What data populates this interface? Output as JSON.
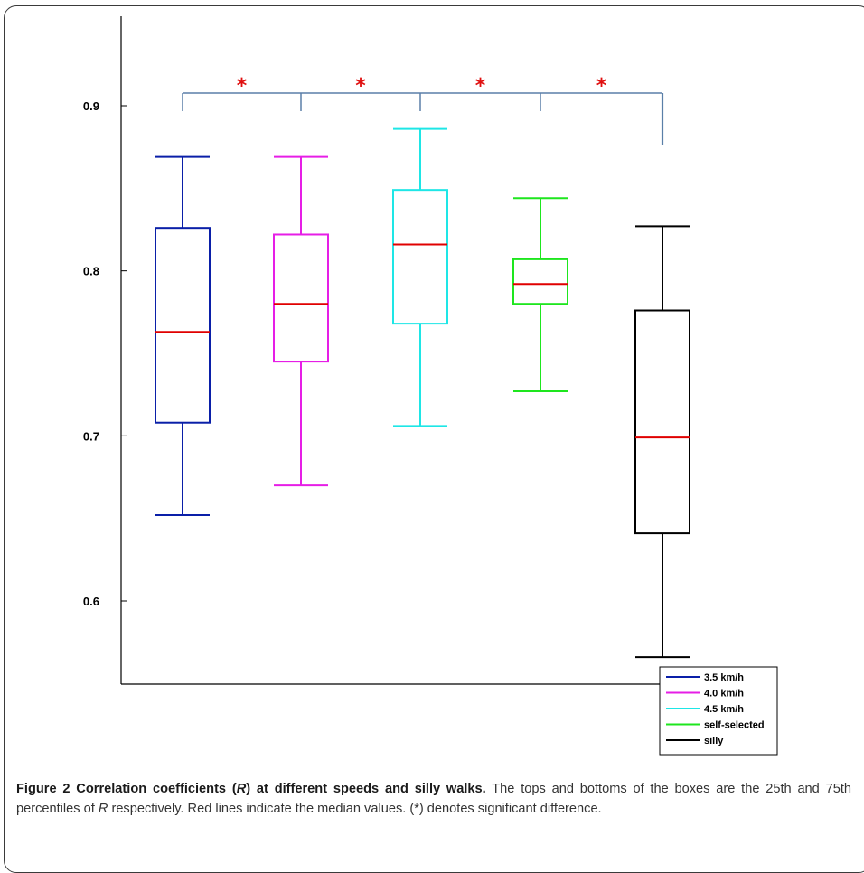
{
  "chart_data": {
    "type": "box",
    "ylim": [
      0.55,
      0.95
    ],
    "yticks": [
      0.6,
      0.7,
      0.8,
      0.9
    ],
    "ytick_labels": [
      "0.6",
      "0.7",
      "0.8",
      "0.9"
    ],
    "series": [
      {
        "name": "3.5 km/h",
        "color": "#0a1fa8",
        "whisker_low": 0.652,
        "q1": 0.708,
        "median": 0.763,
        "q3": 0.826,
        "whisker_high": 0.869
      },
      {
        "name": "4.0 km/h",
        "color": "#e61ee6",
        "whisker_low": 0.67,
        "q1": 0.745,
        "median": 0.78,
        "q3": 0.822,
        "whisker_high": 0.869
      },
      {
        "name": "4.5 km/h",
        "color": "#1ee6e6",
        "whisker_low": 0.706,
        "q1": 0.768,
        "median": 0.816,
        "q3": 0.849,
        "whisker_high": 0.886
      },
      {
        "name": "self-selected",
        "color": "#1ee61e",
        "whisker_low": 0.727,
        "q1": 0.78,
        "median": 0.792,
        "q3": 0.807,
        "whisker_high": 0.844
      },
      {
        "name": "silly",
        "color": "#000000",
        "whisker_low": 0.566,
        "q1": 0.641,
        "median": 0.699,
        "q3": 0.776,
        "whisker_high": 0.827
      }
    ],
    "median_color": "#e00000",
    "significance": {
      "marker": "*",
      "color": "#e01010",
      "bracket_color": "#5a7fa8",
      "count": 4
    },
    "legend_position": "bottom-right"
  },
  "caption": {
    "bold_part1": "Figure 2 Correlation coefficients (",
    "bold_italic": "R",
    "bold_part2": ") at different speeds and silly walks.",
    "text1": " The tops and bottoms of the boxes are the 25th and 75th percentiles of ",
    "italic": "R",
    "text2": " respectively. Red lines indicate the median values. (*) denotes significant difference."
  }
}
